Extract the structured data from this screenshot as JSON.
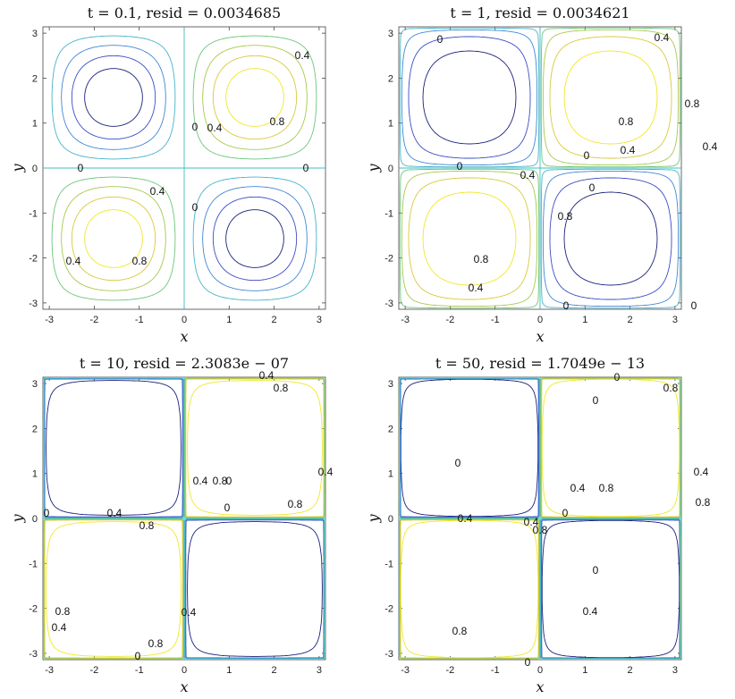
{
  "chart_data": [
    {
      "type": "contour",
      "title": "t = 0.1,  resid = 0.0034685",
      "xlabel": "x",
      "ylabel": "y",
      "xlim": [
        -3.1416,
        3.1416
      ],
      "ylim": [
        -3.1416,
        3.1416
      ],
      "xticks": [
        "-3",
        "-2",
        "-1",
        "0",
        "1",
        "2",
        "3"
      ],
      "yticks": [
        "3",
        "2",
        "1",
        "0",
        "-1",
        "-2",
        "-3"
      ],
      "field": "sin(x)·sin(y) (quadrant pattern)",
      "contour_levels": [
        -0.8,
        -0.6,
        -0.4,
        -0.2,
        0,
        0.2,
        0.4,
        0.6,
        0.8
      ],
      "sharpness": 1,
      "contour_labels": [
        "0",
        "0",
        "0",
        "0",
        "0.4",
        "0.4",
        "0.4",
        "0.4",
        "0.8",
        "0.8"
      ]
    },
    {
      "type": "contour",
      "title": "t = 1,  resid = 0.0034621",
      "xlabel": "x",
      "ylabel": "y",
      "xlim": [
        -3.1416,
        3.1416
      ],
      "ylim": [
        -3.1416,
        3.1416
      ],
      "xticks": [
        "-3",
        "-2",
        "-1",
        "0",
        "1",
        "2",
        "3"
      ],
      "yticks": [
        "3",
        "2",
        "1",
        "0",
        "-1",
        "-2",
        "-3"
      ],
      "contour_levels": [
        -0.8,
        -0.6,
        -0.4,
        -0.2,
        0,
        0.2,
        0.4,
        0.6,
        0.8
      ],
      "sharpness": 3,
      "contour_labels": [
        "0",
        "0",
        "0",
        "0",
        "0",
        "0",
        "0.4",
        "0.4",
        "0.4",
        "0.4",
        "0.4",
        "0.8",
        "0.8",
        "0.8",
        "0.8"
      ]
    },
    {
      "type": "contour",
      "title": "t = 10,  resid = 2.3083e − 07",
      "xlabel": "x",
      "ylabel": "y",
      "xlim": [
        -3.1416,
        3.1416
      ],
      "ylim": [
        -3.1416,
        3.1416
      ],
      "xticks": [
        "-3",
        "-2",
        "-1",
        "0",
        "1",
        "2",
        "3"
      ],
      "yticks": [
        "3",
        "2",
        "1",
        "0",
        "-1",
        "-2",
        "-3"
      ],
      "contour_levels": [
        -0.8,
        -0.6,
        -0.4,
        -0.2,
        0,
        0.2,
        0.4,
        0.6,
        0.8
      ],
      "sharpness": 12,
      "contour_labels": [
        "0",
        "0",
        "0",
        "0",
        "0.4",
        "0.4",
        "0.4",
        "0.4",
        "0.4",
        "0.4",
        "0.8",
        "0.8",
        "0.8",
        "0.8",
        "0.8",
        "0.8"
      ]
    },
    {
      "type": "contour",
      "title": "t = 50,  resid = 1.7049e − 13",
      "xlabel": "x",
      "ylabel": "y",
      "xlim": [
        -3.1416,
        3.1416
      ],
      "ylim": [
        -3.1416,
        3.1416
      ],
      "xticks": [
        "-3",
        "-2",
        "-1",
        "0",
        "1",
        "2",
        "3"
      ],
      "yticks": [
        "3",
        "2",
        "1",
        "0",
        "-1",
        "-2",
        "-3"
      ],
      "contour_levels": [
        -0.8,
        -0.6,
        -0.4,
        -0.2,
        0,
        0.2,
        0.4,
        0.6,
        0.8
      ],
      "sharpness": 14,
      "contour_labels": [
        "0",
        "0",
        "0",
        "0",
        "0",
        "0",
        "0.4",
        "0.4",
        "0.4",
        "0.4",
        "0.4",
        "0.8",
        "0.8",
        "0.8",
        "0.8",
        "0.8"
      ]
    }
  ],
  "colors": {
    "negative_levels": [
      "#1b1f7a",
      "#3a4dc4",
      "#3f86d6",
      "#45b3c9"
    ],
    "zero_level": "#3cbfc0",
    "positive_levels": [
      "#6cc57a",
      "#a7c84a",
      "#d9c93a",
      "#f2e62a"
    ]
  }
}
